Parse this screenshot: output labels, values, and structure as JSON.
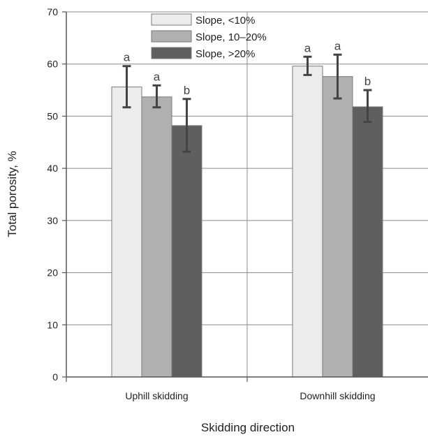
{
  "chart_data": {
    "type": "bar",
    "xlabel": "Skidding direction",
    "ylabel": "Total porosity, %",
    "ylim": [
      0,
      70
    ],
    "yticks": [
      0,
      10,
      20,
      30,
      40,
      50,
      60,
      70
    ],
    "grid": "horizontal",
    "legend_position": "top-center",
    "categories": [
      "Uphill skidding",
      "Downhill skidding"
    ],
    "series": [
      {
        "name": "Slope, <10%",
        "color": "#ececec",
        "values": [
          55.6,
          59.6
        ],
        "error": [
          [
            51.7,
            59.6
          ],
          [
            57.9,
            61.4
          ]
        ],
        "labels": [
          "a",
          "a"
        ]
      },
      {
        "name": "Slope, 10–20%",
        "color": "#b0b0b0",
        "values": [
          53.7,
          57.6
        ],
        "error": [
          [
            51.7,
            55.9
          ],
          [
            53.4,
            61.8
          ]
        ],
        "labels": [
          "a",
          "a"
        ]
      },
      {
        "name": "Slope, >20%",
        "color": "#5f5f5f",
        "values": [
          48.2,
          51.8
        ],
        "error": [
          [
            43.2,
            53.3
          ],
          [
            48.9,
            55.0
          ]
        ],
        "labels": [
          "b",
          "b"
        ]
      }
    ]
  }
}
